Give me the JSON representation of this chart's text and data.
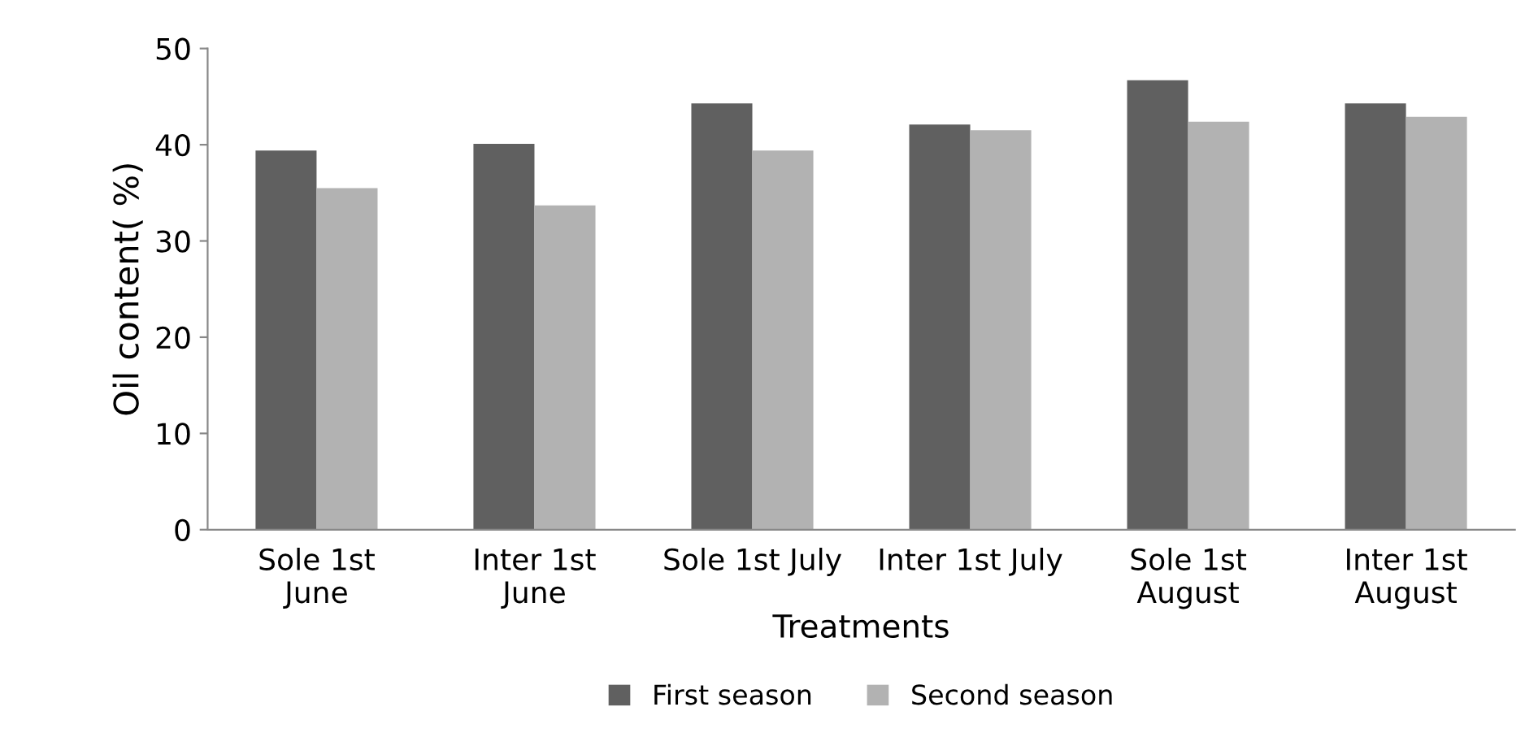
{
  "chart_data": {
    "type": "bar",
    "ylabel": "Oil content( %)",
    "xlabel": "Treatments",
    "categories": [
      "Sole 1st\nJune",
      "Inter 1st\nJune",
      "Sole 1st July",
      "Inter 1st July",
      "Sole 1st\nAugust",
      "Inter 1st\nAugust"
    ],
    "series": [
      {
        "name": "First season",
        "color": "#606060",
        "values": [
          39.4,
          40.1,
          44.3,
          42.1,
          46.7,
          44.3
        ]
      },
      {
        "name": "Second season",
        "color": "#b2b2b2",
        "values": [
          35.5,
          33.7,
          39.4,
          41.5,
          42.4,
          42.9
        ]
      }
    ],
    "ylim": [
      0,
      50
    ],
    "yticks": [
      0,
      10,
      20,
      30,
      40,
      50
    ],
    "grid": false,
    "legend": "bottom"
  }
}
